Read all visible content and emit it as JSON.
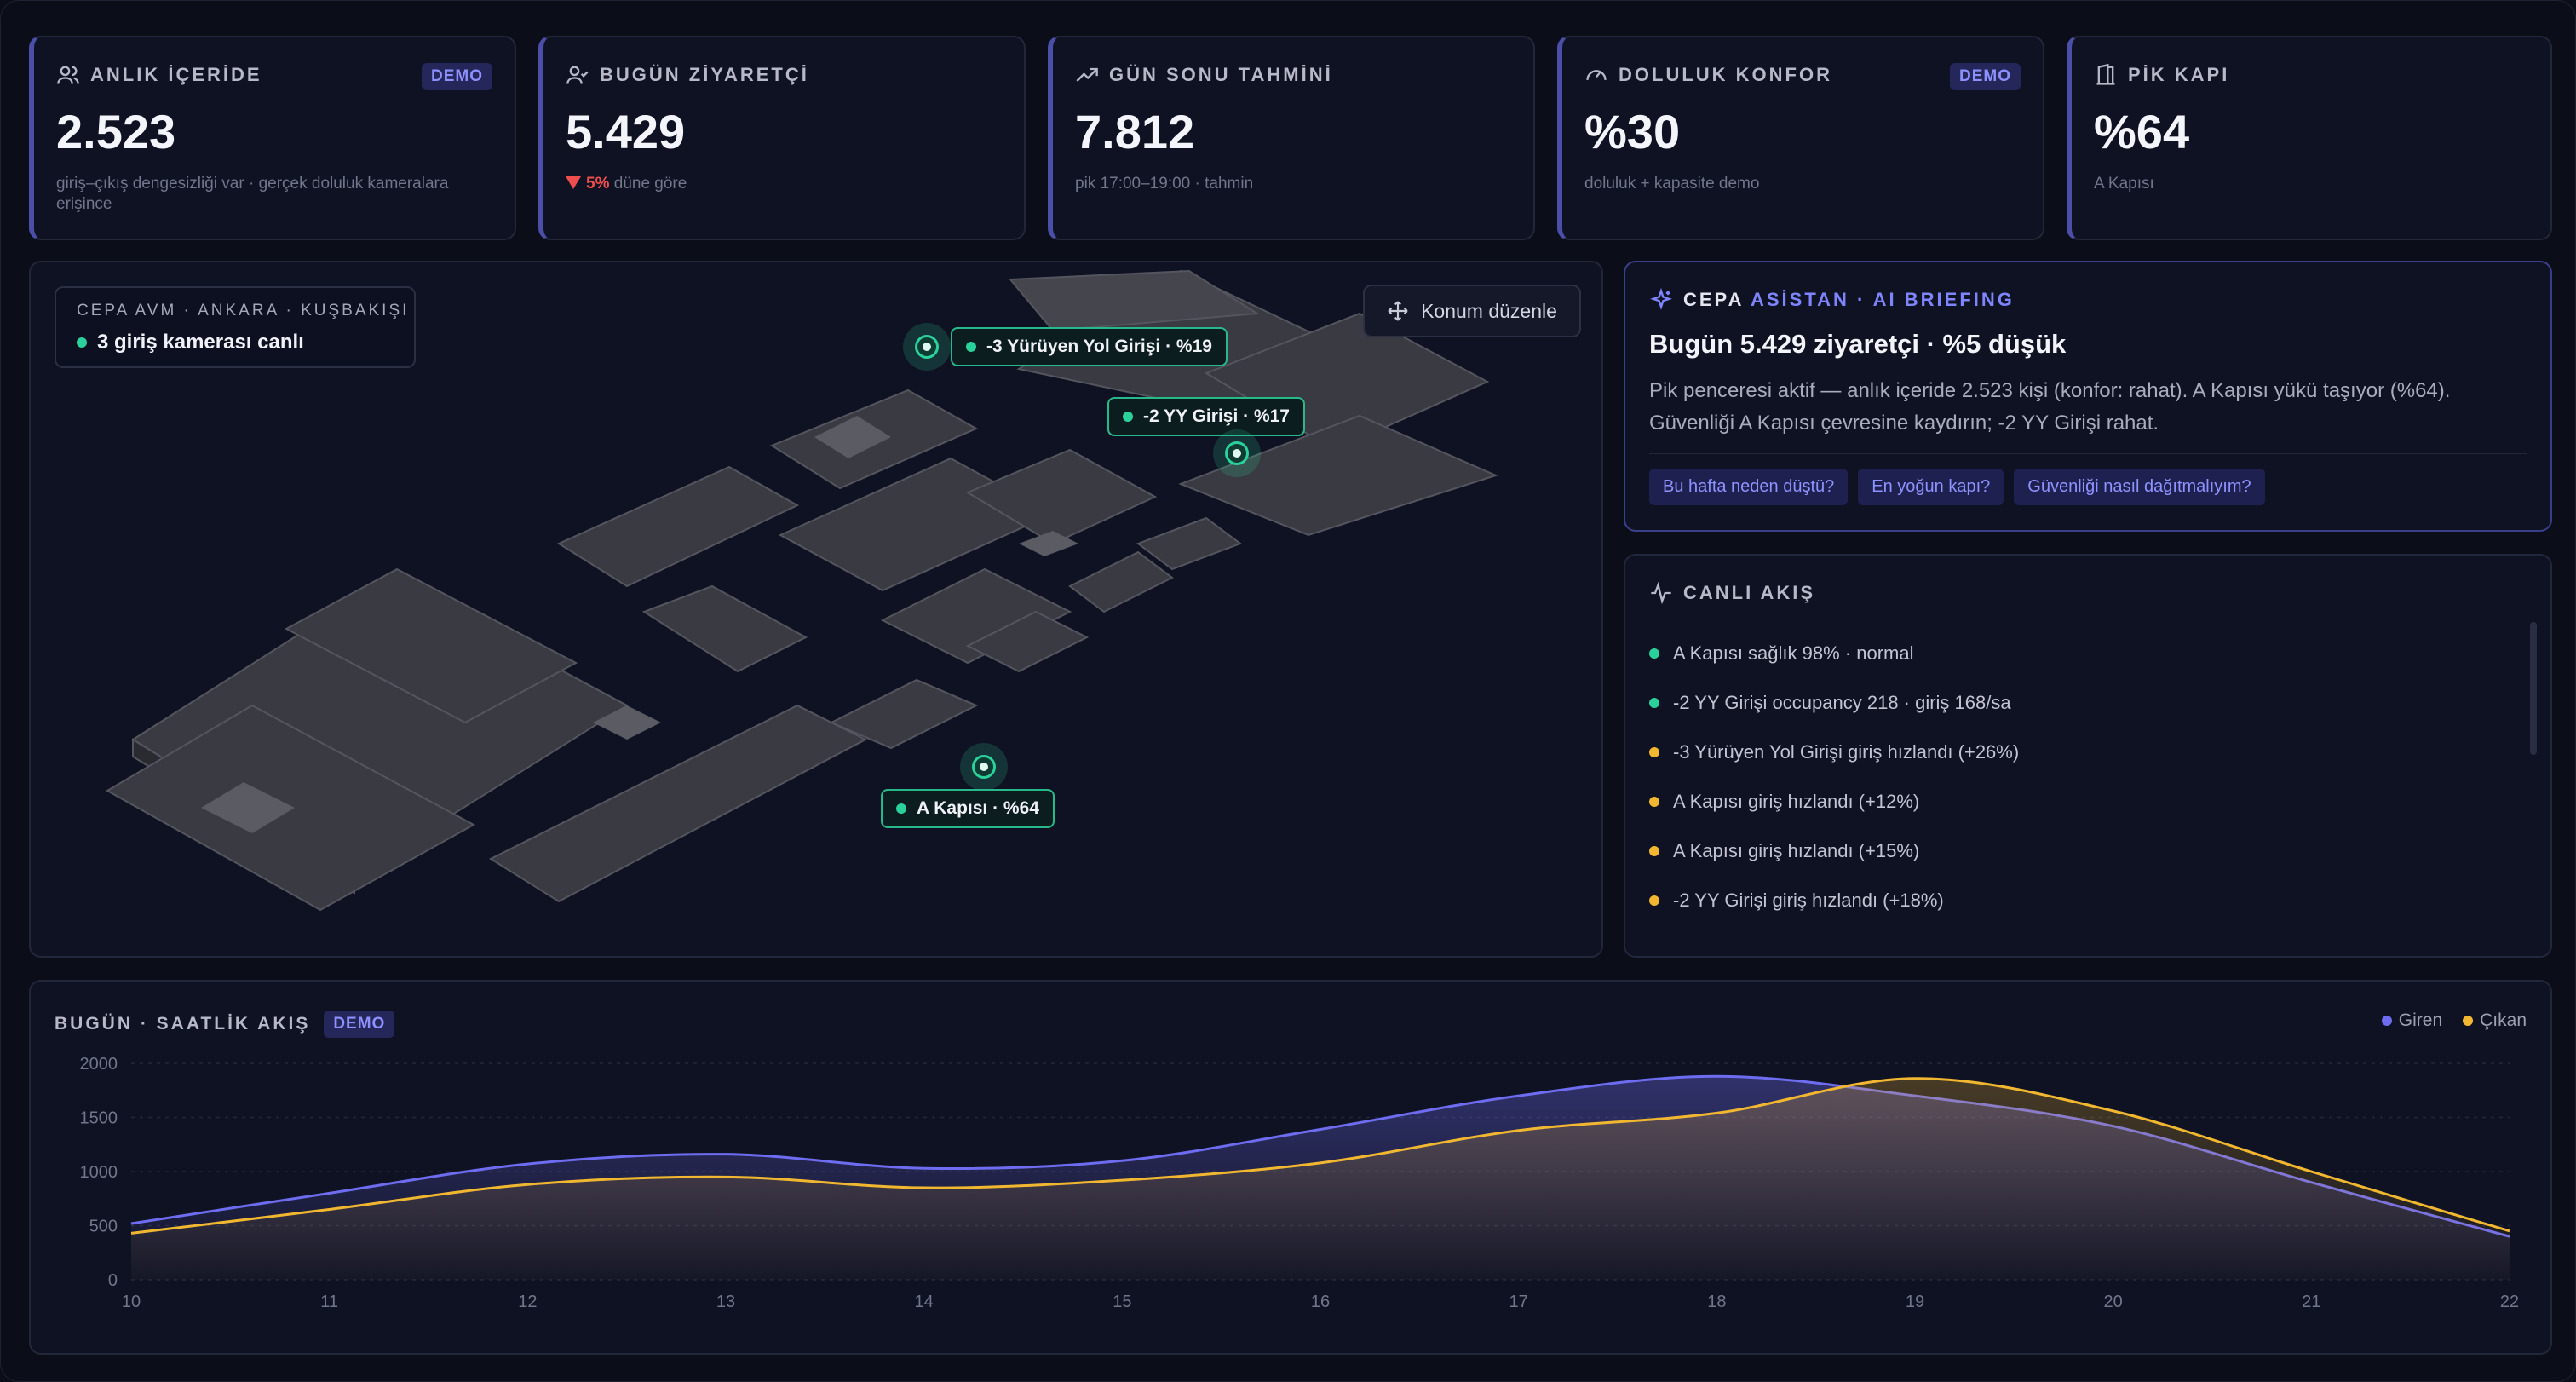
{
  "kpis": [
    {
      "label": "ANLIK İÇERİDE",
      "badge": "DEMO",
      "value": "2.523",
      "note": "giriş–çıkış dengesizliği var · gerçek doluluk kameralara erişince",
      "icon": "users-icon"
    },
    {
      "label": "BUGÜN ZİYARETÇİ",
      "value": "5.429",
      "delta": "5%",
      "note": "düne göre",
      "icon": "user-check-icon"
    },
    {
      "label": "GÜN SONU TAHMİNİ",
      "value": "7.812",
      "note": "pik 17:00–19:00 · tahmin",
      "icon": "trend-up-icon"
    },
    {
      "label": "DOLULUK KONFOR",
      "badge": "DEMO",
      "value": "%30",
      "note": "doluluk + kapasite demo",
      "icon": "gauge-icon"
    },
    {
      "label": "PİK KAPI",
      "value": "%64",
      "note": "A Kapısı",
      "icon": "door-icon"
    }
  ],
  "map": {
    "location": "CEPA AVM · ANKARA · KUŞBAKIŞI",
    "cameras": "3 giriş kamerası canlı",
    "edit_label": "Konum düzenle",
    "pins": [
      {
        "label": "-3 Yürüyen Yol Girişi · %19"
      },
      {
        "label": "-2 YY Girişi · %17"
      },
      {
        "label": "A Kapısı · %64"
      }
    ]
  },
  "briefing": {
    "brand": "CEPA",
    "title_accent": "ASİSTAN · AI BRIEFING",
    "headline": "Bugün 5.429 ziyaretçi · %5 düşük",
    "text": "Pik penceresi aktif — anlık içeride 2.523 kişi (konfor: rahat). A Kapısı yükü taşıyor (%64). Güvenliği A Kapısı çevresine kaydırın; -2 YY Girişi rahat.",
    "chips": [
      "Bu hafta neden düştü?",
      "En yoğun kapı?",
      "Güvenliği nasıl dağıtmalıyım?"
    ]
  },
  "feed": {
    "title": "CANLI AKIŞ",
    "items": [
      {
        "text": "A Kapısı sağlık 98% · normal",
        "color": "#2bd19a"
      },
      {
        "text": "-2 YY Girişi occupancy 218 · giriş 168/sa",
        "color": "#2bd19a"
      },
      {
        "text": "-3 Yürüyen Yol Girişi giriş hızlandı (+26%)",
        "color": "#f2b731"
      },
      {
        "text": "A Kapısı giriş hızlandı (+12%)",
        "color": "#f2b731"
      },
      {
        "text": "A Kapısı giriş hızlandı (+15%)",
        "color": "#f2b731"
      },
      {
        "text": "-2 YY Girişi giriş hızlandı (+18%)",
        "color": "#f2b731"
      }
    ]
  },
  "chart_title": "BUGÜN · SAATLİK AKIŞ",
  "chart_badge": "DEMO",
  "chart_data": {
    "type": "area",
    "x": [
      10,
      11,
      12,
      13,
      14,
      15,
      16,
      17,
      18,
      19,
      20,
      21,
      22
    ],
    "ylim": [
      0,
      2000
    ],
    "yticks": [
      0,
      500,
      1000,
      1500,
      2000
    ],
    "grid": true,
    "legend_position": "top-right",
    "series": [
      {
        "name": "Giren",
        "color": "#6e6cf0",
        "values": [
          520,
          800,
          1070,
          1160,
          1030,
          1100,
          1390,
          1700,
          1880,
          1700,
          1420,
          900,
          400
        ]
      },
      {
        "name": "Çıkan",
        "color": "#f2b731",
        "values": [
          430,
          650,
          880,
          950,
          850,
          920,
          1080,
          1380,
          1540,
          1860,
          1560,
          1000,
          450
        ]
      }
    ]
  }
}
